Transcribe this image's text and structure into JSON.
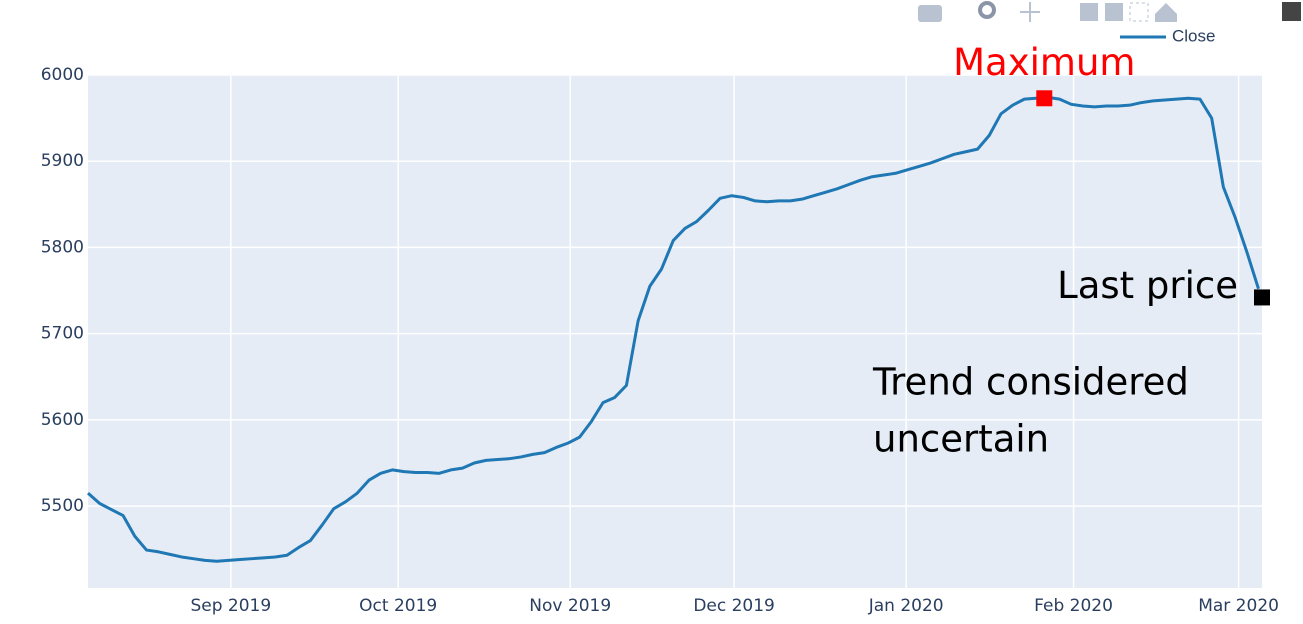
{
  "chart_data": {
    "type": "line",
    "series": [
      {
        "name": "Close",
        "color": "#1f77b4",
        "values": [
          5515,
          5503,
          5496,
          5489,
          5465,
          5449,
          5447,
          5444,
          5441,
          5439,
          5437,
          5436,
          5437,
          5438,
          5439,
          5440,
          5441,
          5443,
          5452,
          5460,
          5478,
          5497,
          5505,
          5515,
          5530,
          5538,
          5542,
          5540,
          5539,
          5539,
          5538,
          5542,
          5544,
          5550,
          5553,
          5554,
          5555,
          5557,
          5560,
          5562,
          5568,
          5573,
          5580,
          5598,
          5620,
          5626,
          5640,
          5715,
          5755,
          5775,
          5808,
          5822,
          5830,
          5843,
          5857,
          5860,
          5858,
          5854,
          5853,
          5854,
          5854,
          5856,
          5860,
          5864,
          5868,
          5873,
          5878,
          5882,
          5884,
          5886,
          5890,
          5894,
          5898,
          5903,
          5908,
          5911,
          5914,
          5930,
          5955,
          5965,
          5972,
          5973,
          5974,
          5972,
          5966,
          5964,
          5963,
          5964,
          5964,
          5965,
          5968,
          5970,
          5971,
          5972,
          5973,
          5972,
          5950,
          5870,
          5835,
          5795,
          5752
        ]
      }
    ],
    "markers": [
      {
        "name": "Maximum",
        "x": 81.7,
        "value": 5973,
        "color": "#ff0000"
      },
      {
        "name": "Last price",
        "x": 100.3,
        "value": 5742,
        "color": "#000000"
      }
    ],
    "annotation_lines": [
      "Trend considered",
      "uncertain"
    ],
    "xlim": [
      0,
      100.3
    ],
    "xticks": [
      {
        "value": 12.2,
        "label": "Sep 2019"
      },
      {
        "value": 26.5,
        "label": "Oct 2019"
      },
      {
        "value": 41.2,
        "label": "Nov 2019"
      },
      {
        "value": 55.2,
        "label": "Dec 2019"
      },
      {
        "value": 69.9,
        "label": "Jan 2020"
      },
      {
        "value": 84.2,
        "label": "Feb 2020"
      },
      {
        "value": 98.3,
        "label": "Mar 2020"
      }
    ],
    "ylim": [
      5405,
      6000
    ],
    "yticks": [
      5500,
      5600,
      5700,
      5800,
      5900,
      6000
    ],
    "grid": true,
    "legend": "top-right"
  }
}
